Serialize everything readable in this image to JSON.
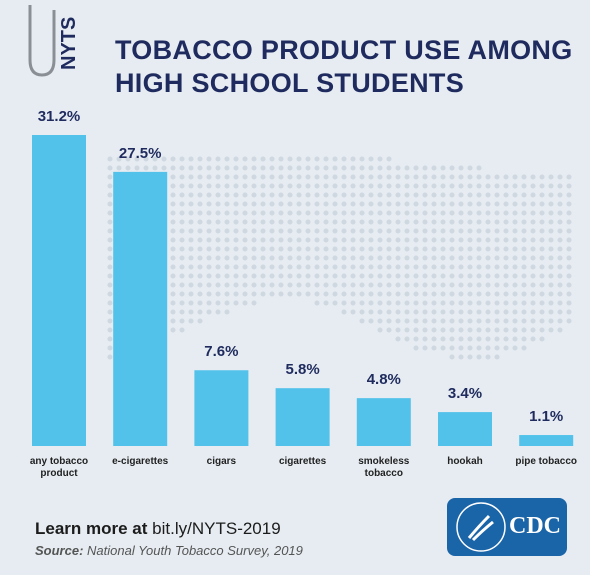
{
  "tag": "NYTS",
  "chart_data": {
    "type": "bar",
    "title_lines": [
      "TOBACCO PRODUCT USE AMONG",
      "HIGH SCHOOL STUDENTS"
    ],
    "categories": [
      "any tobacco product",
      "e-cigarettes",
      "cigars",
      "cigarettes",
      "smokeless tobacco",
      "hookah",
      "pipe tobacco"
    ],
    "values": [
      31.2,
      27.5,
      7.6,
      5.8,
      4.8,
      3.4,
      1.1
    ],
    "value_labels": [
      "31.2%",
      "27.5%",
      "7.6%",
      "5.8%",
      "4.8%",
      "3.4%",
      "1.1%"
    ],
    "color": "#52c2ea"
  },
  "footer": {
    "learn_more": "Learn more at",
    "link": "bit.ly/NYTS-2019",
    "source_label": "Source:",
    "source_text": "National Youth Tobacco Survey, 2019"
  },
  "logo": {
    "text": "CDC"
  }
}
